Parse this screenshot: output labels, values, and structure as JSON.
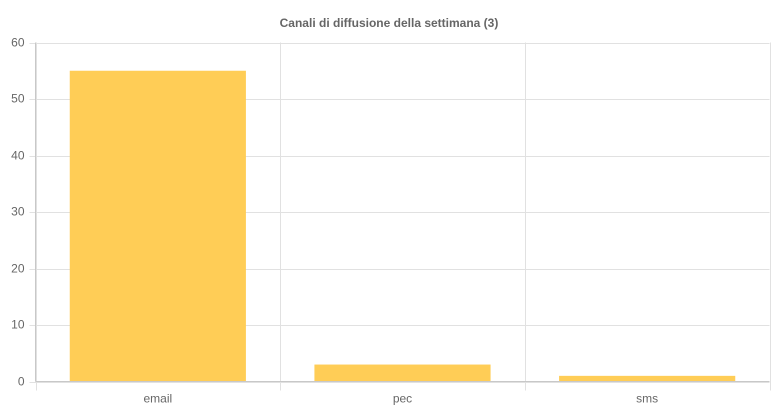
{
  "chart_data": {
    "type": "bar",
    "title": "Canali di diffusione della settimana (3)",
    "categories": [
      "email",
      "pec",
      "sms"
    ],
    "values": [
      55,
      3,
      1
    ],
    "color": "#ffcd56",
    "ylim": [
      0,
      60
    ],
    "yticks": [
      0,
      10,
      20,
      30,
      40,
      50,
      60
    ],
    "grid": true
  }
}
